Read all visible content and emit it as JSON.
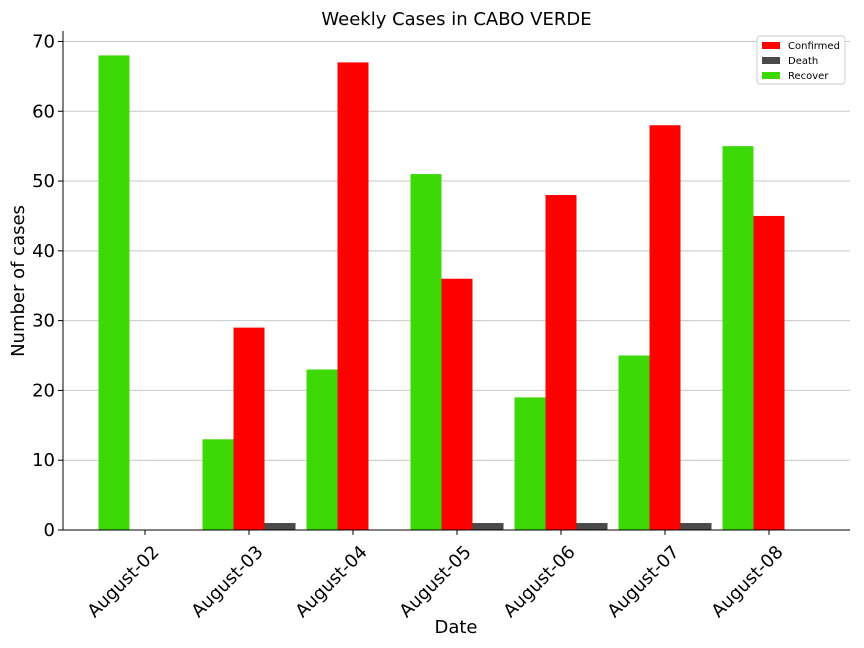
{
  "chart_data": {
    "type": "bar",
    "title": "Weekly Cases in CABO VERDE",
    "xlabel": "Date",
    "ylabel": "Number of cases",
    "ylim": [
      0,
      71.5
    ],
    "yticks": [
      0,
      10,
      20,
      30,
      40,
      50,
      60,
      70
    ],
    "grid": "horizontal",
    "legend_position": "top-right",
    "categories": [
      "August-02",
      "August-03",
      "August-04",
      "August-05",
      "August-06",
      "August-07",
      "August-08"
    ],
    "series": [
      {
        "name": "Recover",
        "color": "#3dd907",
        "values": [
          68,
          13,
          23,
          51,
          19,
          25,
          55
        ]
      },
      {
        "name": "Confirmed",
        "color": "#ff0000",
        "values": [
          0,
          29,
          67,
          36,
          48,
          58,
          45
        ]
      },
      {
        "name": "Death",
        "color": "#4a4a4a",
        "values": [
          0,
          1,
          0,
          1,
          1,
          1,
          0
        ]
      }
    ],
    "legend_order": [
      "Confirmed",
      "Death",
      "Recover"
    ]
  }
}
